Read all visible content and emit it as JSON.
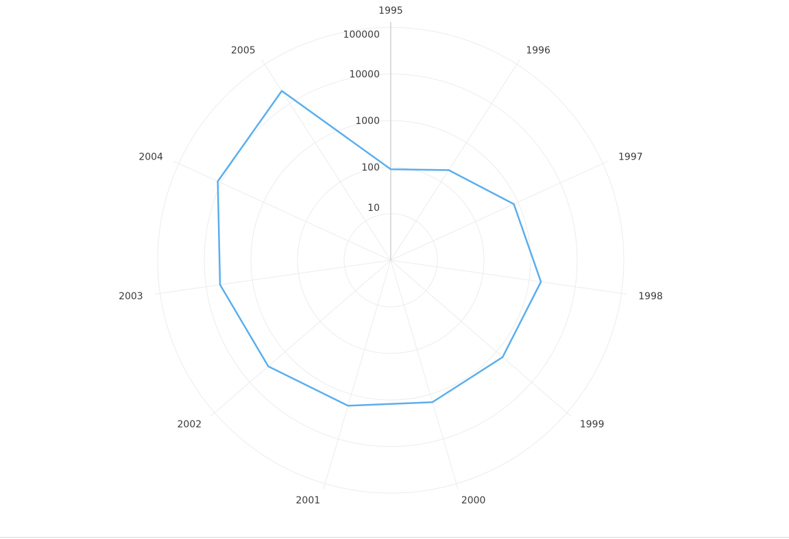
{
  "chart_data": {
    "type": "radar",
    "scale": "log",
    "categories": [
      "1995",
      "1996",
      "1997",
      "1998",
      "1999",
      "2000",
      "2001",
      "2002",
      "2003",
      "2004",
      "2005"
    ],
    "series": [
      {
        "values": [
          90,
          200,
          800,
          1800,
          1500,
          1500,
          1800,
          3000,
          5000,
          12000,
          21000
        ],
        "color": "#5aaeed"
      }
    ],
    "radial_ticks": [
      "10",
      "100",
      "1000",
      "10000",
      "100000"
    ],
    "radial_tick_values": [
      10,
      100,
      1000,
      10000,
      100000
    ],
    "rlim": [
      1,
      100000
    ],
    "grid": true,
    "gridColor": "#ececec",
    "axisLineColor": "#d0d0d0"
  }
}
